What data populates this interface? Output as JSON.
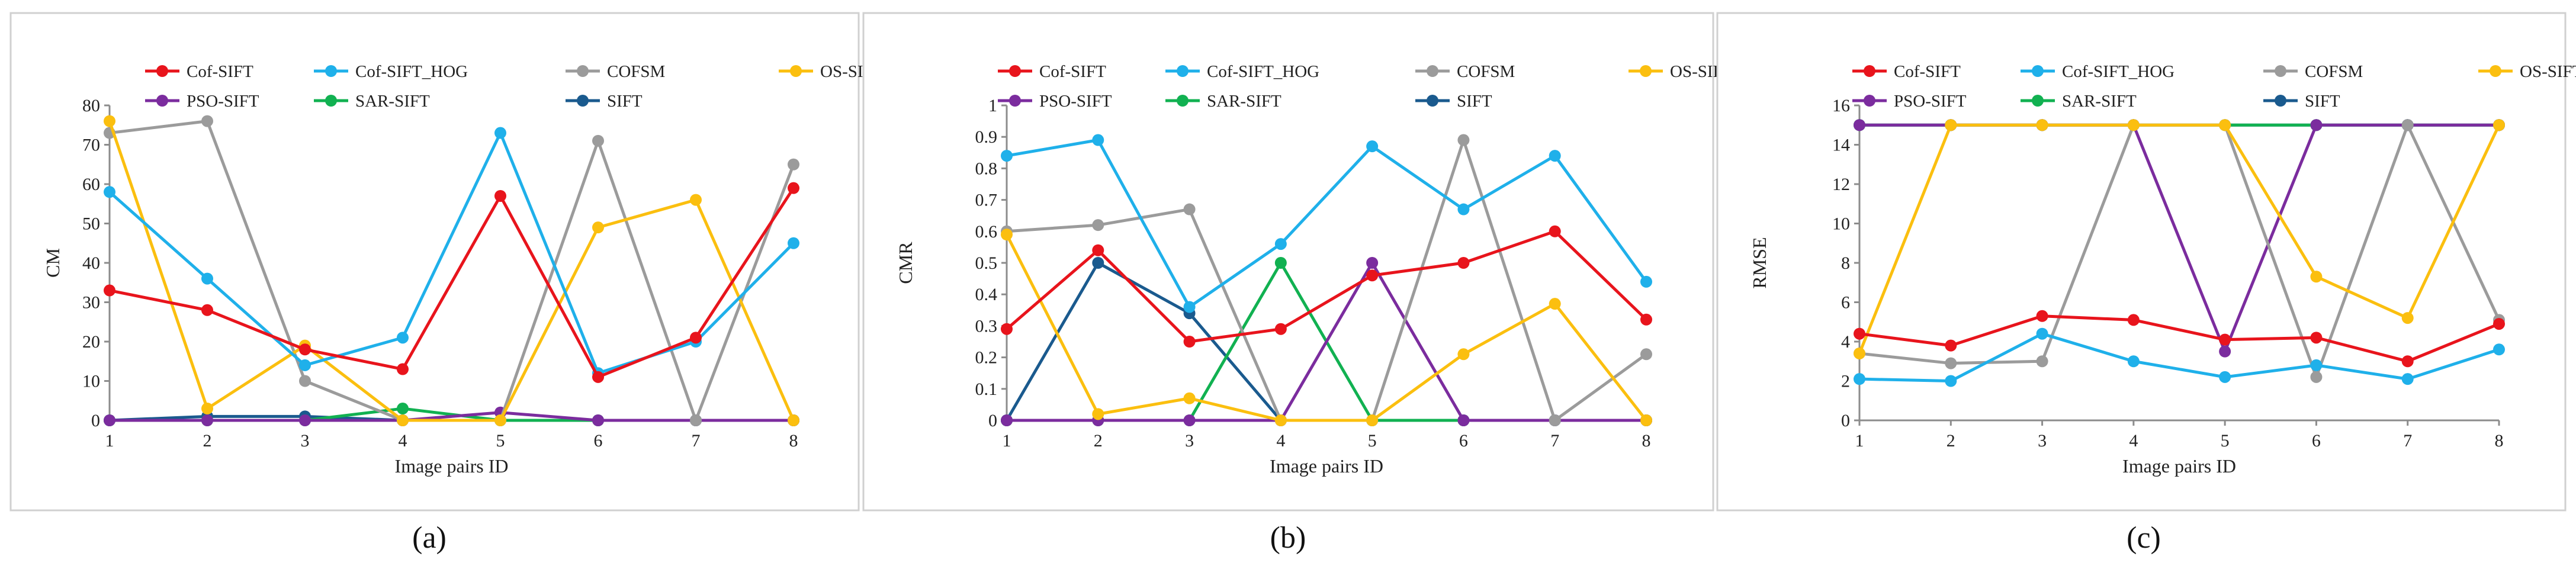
{
  "chart_data": [
    {
      "type": "line",
      "caption": "(a)",
      "xlabel": "Image pairs ID",
      "ylabel": "CM",
      "x": [
        1,
        2,
        3,
        4,
        5,
        6,
        7,
        8
      ],
      "xticks": [
        "1",
        "2",
        "3",
        "4",
        "5",
        "6",
        "7",
        "8"
      ],
      "ylim": [
        0,
        80
      ],
      "yticks": [
        0,
        10,
        20,
        30,
        40,
        50,
        60,
        70,
        80
      ],
      "ytick_labels": [
        "0",
        "10",
        "20",
        "30",
        "40",
        "50",
        "60",
        "70",
        "80"
      ],
      "grid": false,
      "legend_position": "top",
      "series": [
        {
          "name": "Cof-SIFT",
          "color": "#e8141c",
          "values": [
            33,
            28,
            18,
            13,
            57,
            11,
            21,
            59
          ]
        },
        {
          "name": "Cof-SIFT_HOG",
          "color": "#1fb0ea",
          "values": [
            58,
            36,
            14,
            21,
            73,
            12,
            20,
            45
          ]
        },
        {
          "name": "COFSM",
          "color": "#9b9b9b",
          "values": [
            73,
            76,
            10,
            0,
            0,
            71,
            0,
            65
          ]
        },
        {
          "name": "OS-SIFT",
          "color": "#fbbf0f",
          "values": [
            76,
            3,
            19,
            0,
            0,
            49,
            56,
            0
          ]
        },
        {
          "name": "PSO-SIFT",
          "color": "#7b2c9e",
          "values": [
            0,
            0,
            0,
            0,
            2,
            0,
            0,
            0
          ]
        },
        {
          "name": "SAR-SIFT",
          "color": "#11b151",
          "values": [
            0,
            0,
            0,
            3,
            0,
            0,
            0,
            0
          ]
        },
        {
          "name": "SIFT",
          "color": "#1a5a8e",
          "values": [
            0,
            1,
            1,
            0,
            0,
            0,
            0,
            0
          ]
        }
      ]
    },
    {
      "type": "line",
      "caption": "(b)",
      "xlabel": "Image pairs ID",
      "ylabel": "CMR",
      "x": [
        1,
        2,
        3,
        4,
        5,
        6,
        7,
        8
      ],
      "xticks": [
        "1",
        "2",
        "3",
        "4",
        "5",
        "6",
        "7",
        "8"
      ],
      "ylim": [
        0,
        1
      ],
      "yticks": [
        0,
        0.1,
        0.2,
        0.3,
        0.4,
        0.5,
        0.6,
        0.7,
        0.8,
        0.9,
        1
      ],
      "ytick_labels": [
        "0",
        "0.1",
        "0.2",
        "0.3",
        "0.4",
        "0.5",
        "0.6",
        "0.7",
        "0.8",
        "0.9",
        "1"
      ],
      "grid": false,
      "legend_position": "top",
      "series": [
        {
          "name": "Cof-SIFT",
          "color": "#e8141c",
          "values": [
            0.29,
            0.54,
            0.25,
            0.29,
            0.46,
            0.5,
            0.6,
            0.32
          ]
        },
        {
          "name": "Cof-SIFT_HOG",
          "color": "#1fb0ea",
          "values": [
            0.84,
            0.89,
            0.36,
            0.56,
            0.87,
            0.67,
            0.84,
            0.44
          ]
        },
        {
          "name": "COFSM",
          "color": "#9b9b9b",
          "values": [
            0.6,
            0.62,
            0.67,
            0,
            0,
            0.89,
            0,
            0.21
          ]
        },
        {
          "name": "OS-SIFT",
          "color": "#fbbf0f",
          "values": [
            0.59,
            0.02,
            0.07,
            0,
            0,
            0.21,
            0.37,
            0
          ]
        },
        {
          "name": "PSO-SIFT",
          "color": "#7b2c9e",
          "values": [
            0,
            0,
            0,
            0,
            0.5,
            0,
            0,
            0
          ]
        },
        {
          "name": "SAR-SIFT",
          "color": "#11b151",
          "values": [
            0,
            0,
            0,
            0.5,
            0,
            0,
            0,
            0
          ]
        },
        {
          "name": "SIFT",
          "color": "#1a5a8e",
          "values": [
            0,
            0.5,
            0.34,
            0,
            0,
            0,
            0,
            0
          ]
        }
      ]
    },
    {
      "type": "line",
      "caption": "(c)",
      "xlabel": "Image pairs ID",
      "ylabel": "RMSE",
      "x": [
        1,
        2,
        3,
        4,
        5,
        6,
        7,
        8
      ],
      "xticks": [
        "1",
        "2",
        "3",
        "4",
        "5",
        "6",
        "7",
        "8"
      ],
      "ylim": [
        0,
        16
      ],
      "yticks": [
        0,
        2,
        4,
        6,
        8,
        10,
        12,
        14,
        16
      ],
      "ytick_labels": [
        "0",
        "2",
        "4",
        "6",
        "8",
        "10",
        "12",
        "14",
        "16"
      ],
      "grid": false,
      "legend_position": "top",
      "series": [
        {
          "name": "Cof-SIFT",
          "color": "#e8141c",
          "values": [
            4.4,
            3.8,
            5.3,
            5.1,
            4.1,
            4.2,
            3.0,
            4.9
          ]
        },
        {
          "name": "Cof-SIFT_HOG",
          "color": "#1fb0ea",
          "values": [
            2.1,
            2.0,
            4.4,
            3.0,
            2.2,
            2.8,
            2.1,
            3.6
          ]
        },
        {
          "name": "COFSM",
          "color": "#9b9b9b",
          "values": [
            3.4,
            2.9,
            3.0,
            15,
            15,
            2.2,
            15,
            5.1
          ]
        },
        {
          "name": "OS-SIFT",
          "color": "#fbbf0f",
          "values": [
            3.4,
            15,
            15,
            15,
            15,
            7.3,
            5.2,
            15
          ]
        },
        {
          "name": "PSO-SIFT",
          "color": "#7b2c9e",
          "values": [
            15,
            15,
            15,
            15,
            3.5,
            15,
            15,
            15
          ]
        },
        {
          "name": "SAR-SIFT",
          "color": "#11b151",
          "values": [
            15,
            15,
            15,
            15,
            15,
            15,
            15,
            15
          ]
        },
        {
          "name": "SIFT",
          "color": "#1a5a8e",
          "values": [
            15,
            15,
            15,
            15,
            15,
            15,
            15,
            15
          ]
        }
      ]
    }
  ]
}
